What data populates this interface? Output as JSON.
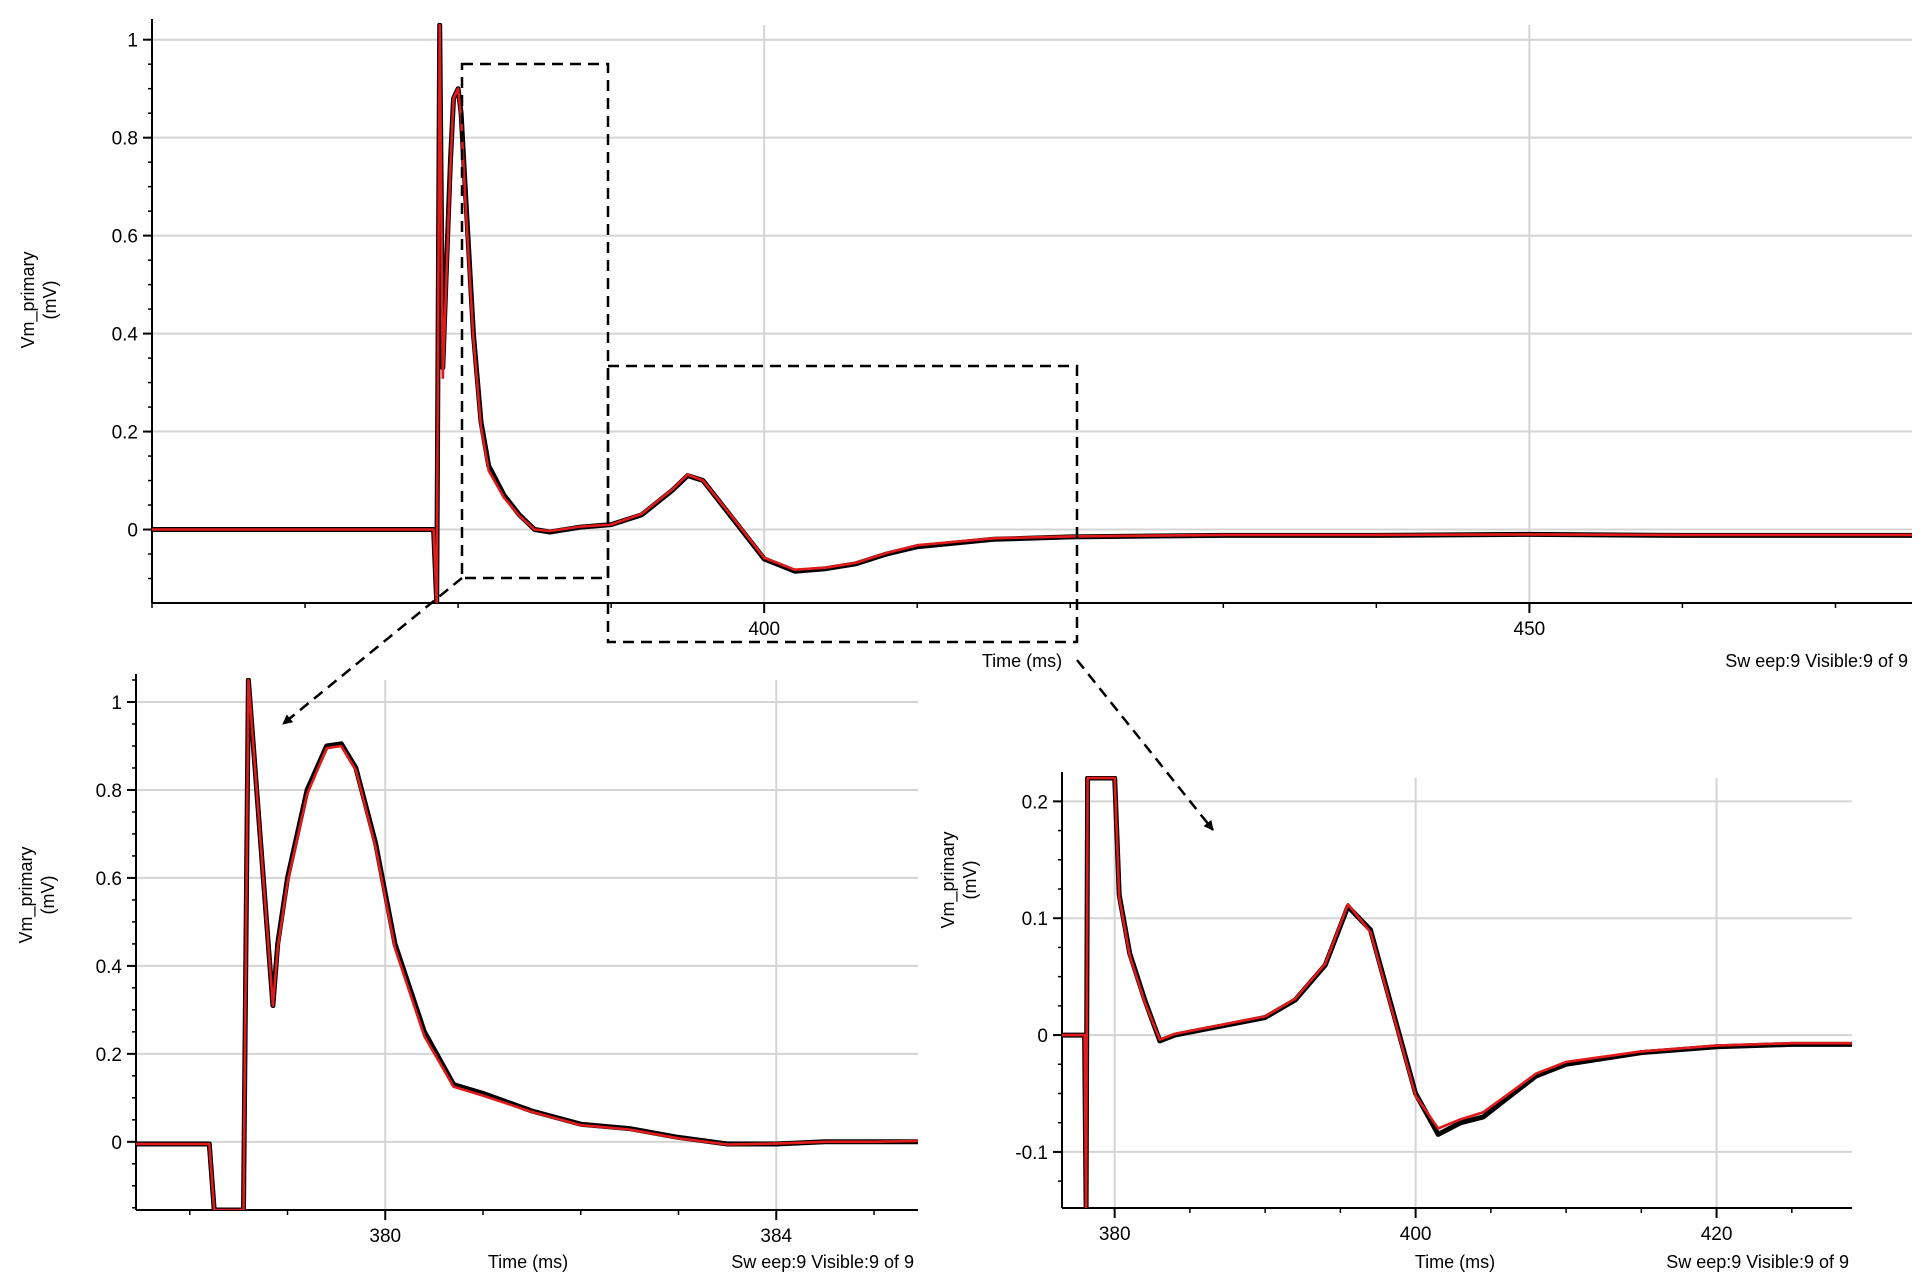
{
  "chart_data": [
    {
      "id": "main",
      "type": "line",
      "title": "",
      "xlabel": "Time (ms)",
      "ylabel": "Vm_primary\n(mV)",
      "status": "Sw eep:9 Visible:9 of 9",
      "xlim": [
        360,
        475
      ],
      "ylim": [
        -0.15,
        1.03
      ],
      "x_ticks": [
        400,
        450
      ],
      "y_ticks": [
        0,
        0.2,
        0.4,
        0.6,
        0.8,
        1
      ],
      "y_tick_labels": [
        "0",
        "0.2",
        "0.4",
        "0.6",
        "0.8",
        "1"
      ],
      "grid": true,
      "series": [
        {
          "color": "#000000",
          "x": [
            360,
            375,
            378.4,
            378.6,
            378.8,
            379,
            379.2,
            379.5,
            379.7,
            380,
            380.2,
            380.5,
            381,
            381.5,
            382,
            383,
            384,
            385,
            386,
            388,
            390,
            392,
            394,
            395,
            396,
            398,
            400,
            402,
            404,
            406,
            408,
            410,
            415,
            420,
            430,
            440,
            450,
            460,
            475
          ],
          "y": [
            0,
            0,
            0,
            -0.15,
            1.03,
            0.33,
            0.5,
            0.75,
            0.88,
            0.9,
            0.85,
            0.68,
            0.4,
            0.22,
            0.13,
            0.07,
            0.03,
            0,
            -0.005,
            0.005,
            0.01,
            0.03,
            0.08,
            0.11,
            0.1,
            0.02,
            -0.06,
            -0.085,
            -0.08,
            -0.07,
            -0.05,
            -0.035,
            -0.02,
            -0.015,
            -0.012,
            -0.012,
            -0.01,
            -0.012,
            -0.012
          ]
        },
        {
          "color": "#e11b1b",
          "x": [
            360,
            375,
            378.4,
            378.6,
            378.8,
            379,
            379.2,
            379.5,
            379.7,
            380,
            380.2,
            380.5,
            381,
            381.5,
            382,
            383,
            384,
            385,
            386,
            388,
            390,
            392,
            394,
            395,
            396,
            398,
            400,
            402,
            404,
            406,
            408,
            410,
            415,
            420,
            430,
            440,
            450,
            460,
            475
          ],
          "y": [
            0,
            0,
            0,
            -0.15,
            1.03,
            0.31,
            0.48,
            0.74,
            0.88,
            0.9,
            0.84,
            0.66,
            0.39,
            0.21,
            0.12,
            0.065,
            0.028,
            0,
            -0.003,
            0.006,
            0.01,
            0.032,
            0.082,
            0.112,
            0.1,
            0.022,
            -0.058,
            -0.082,
            -0.078,
            -0.068,
            -0.048,
            -0.032,
            -0.018,
            -0.014,
            -0.011,
            -0.011,
            -0.01,
            -0.011,
            -0.011
          ]
        }
      ]
    },
    {
      "id": "zoom_left",
      "type": "line",
      "title": "",
      "xlabel": "Time (ms)",
      "ylabel": "Vm_primary\n(mV)",
      "status": "Sw eep:9 Visible:9 of 9",
      "xlim": [
        377.45,
        385.45
      ],
      "ylim": [
        -0.155,
        1.05
      ],
      "x_ticks": [
        380,
        384
      ],
      "y_ticks": [
        0,
        0.2,
        0.4,
        0.6,
        0.8,
        1
      ],
      "y_tick_labels": [
        "0",
        "0.2",
        "0.4",
        "0.6",
        "0.8",
        "1"
      ],
      "grid": true,
      "series": [
        {
          "color": "#000000",
          "x": [
            377.45,
            378.2,
            378.25,
            378.55,
            378.6,
            378.85,
            378.9,
            379,
            379.2,
            379.4,
            379.55,
            379.7,
            379.9,
            380.1,
            380.4,
            380.7,
            381,
            381.5,
            382,
            382.5,
            383,
            383.5,
            384,
            384.5,
            385,
            385.45
          ],
          "y": [
            -0.005,
            -0.005,
            -0.155,
            -0.155,
            1.05,
            0.31,
            0.45,
            0.6,
            0.8,
            0.9,
            0.905,
            0.85,
            0.68,
            0.45,
            0.25,
            0.13,
            0.11,
            0.07,
            0.04,
            0.03,
            0.01,
            -0.005,
            -0.005,
            0,
            0,
            0
          ]
        },
        {
          "color": "#e11b1b",
          "x": [
            377.45,
            378.2,
            378.25,
            378.55,
            378.6,
            378.85,
            378.9,
            379,
            379.2,
            379.4,
            379.55,
            379.7,
            379.9,
            380.1,
            380.4,
            380.7,
            381,
            381.5,
            382,
            382.5,
            383,
            383.5,
            384,
            384.5,
            385,
            385.45
          ],
          "y": [
            -0.005,
            -0.005,
            -0.155,
            -0.155,
            1.05,
            0.31,
            0.44,
            0.59,
            0.79,
            0.895,
            0.9,
            0.845,
            0.67,
            0.44,
            0.24,
            0.125,
            0.105,
            0.068,
            0.038,
            0.028,
            0.008,
            -0.006,
            -0.004,
            0,
            0,
            0.002
          ]
        }
      ]
    },
    {
      "id": "zoom_right",
      "type": "line",
      "title": "",
      "xlabel": "Time (ms)",
      "ylabel": "Vm_primary\n(mV)",
      "status": "Sw eep:9 Visible:9 of 9",
      "xlim": [
        376.5,
        429
      ],
      "ylim": [
        -0.148,
        0.22
      ],
      "x_ticks": [
        380,
        400,
        420
      ],
      "y_ticks": [
        -0.1,
        0,
        0.1,
        0.2
      ],
      "y_tick_labels": [
        "-0.1",
        "0",
        "0.1",
        "0.2"
      ],
      "grid": true,
      "series": [
        {
          "color": "#000000",
          "x": [
            376.5,
            378,
            378.1,
            378.2,
            380,
            380.3,
            381,
            382,
            383,
            384,
            386,
            388,
            390,
            392,
            394,
            395.5,
            397,
            398.5,
            400,
            401.5,
            403,
            404.5,
            406,
            408,
            410,
            415,
            420,
            425,
            429
          ],
          "y": [
            0,
            0,
            -0.148,
            0.22,
            0.22,
            0.12,
            0.07,
            0.03,
            -0.005,
            0,
            0.005,
            0.01,
            0.015,
            0.03,
            0.06,
            0.11,
            0.09,
            0.02,
            -0.05,
            -0.085,
            -0.075,
            -0.07,
            -0.055,
            -0.035,
            -0.025,
            -0.015,
            -0.01,
            -0.008,
            -0.008
          ]
        },
        {
          "color": "#e11b1b",
          "x": [
            376.5,
            378,
            378.1,
            378.2,
            380,
            380.3,
            381,
            382,
            383,
            384,
            386,
            388,
            390,
            392,
            394,
            395.5,
            397,
            398.5,
            400,
            401.5,
            403,
            404.5,
            406,
            408,
            410,
            415,
            420,
            425,
            429
          ],
          "y": [
            0,
            0,
            -0.148,
            0.22,
            0.22,
            0.118,
            0.068,
            0.028,
            -0.004,
            0.001,
            0.006,
            0.011,
            0.016,
            0.031,
            0.061,
            0.112,
            0.088,
            0.018,
            -0.052,
            -0.08,
            -0.072,
            -0.066,
            -0.052,
            -0.033,
            -0.023,
            -0.014,
            -0.009,
            -0.007,
            -0.007
          ]
        }
      ]
    }
  ]
}
